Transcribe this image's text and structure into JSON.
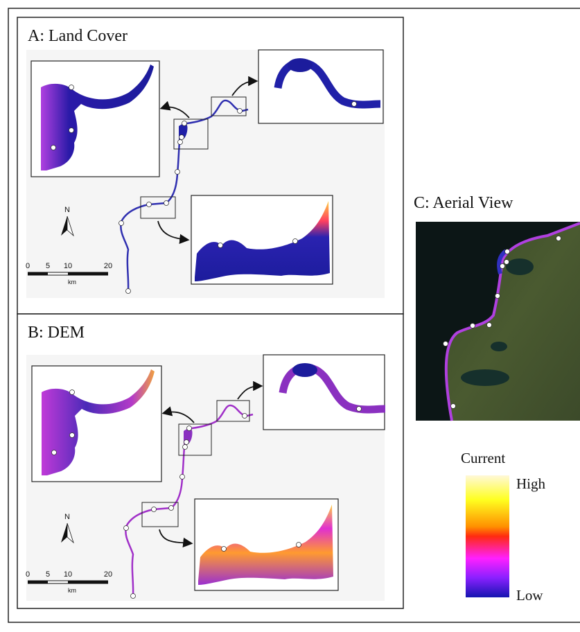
{
  "panels": [
    {
      "title": "A: Land Cover",
      "north": "N",
      "scale": {
        "labels": [
          "0",
          "5",
          "10",
          "20"
        ],
        "unit": "km"
      }
    },
    {
      "title": "B: DEM",
      "north": "N",
      "scale": {
        "labels": [
          "0",
          "5",
          "10",
          "20"
        ],
        "unit": "km"
      }
    }
  ],
  "aerial": {
    "title": "C: Aerial View"
  },
  "legend": {
    "title": "Current",
    "high": "High",
    "low": "Low"
  }
}
